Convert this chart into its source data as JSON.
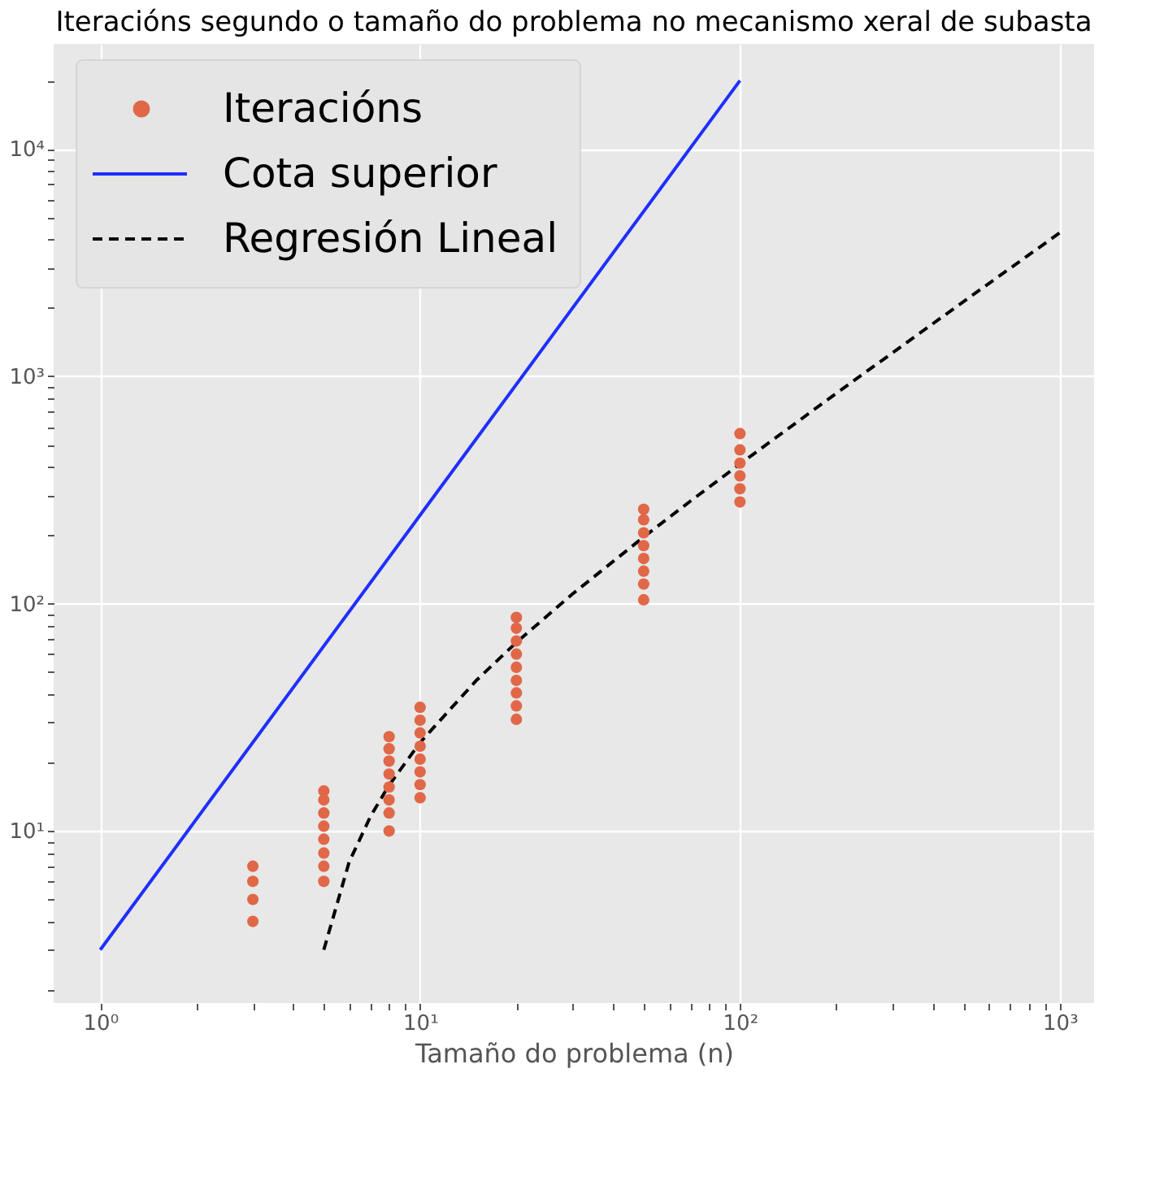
{
  "chart_data": {
    "type": "scatter",
    "title": "Iteracións segundo o tamaño do problema no mecanismo xeral de subasta",
    "xlabel": "Tamaño do problema (n)",
    "log": "xy",
    "grid": true,
    "legend": "top left",
    "xlim": [
      0.715,
      1280
    ],
    "ylim": [
      1.75,
      29000
    ],
    "xticks": [
      {
        "value": 1,
        "label": "10⁰"
      },
      {
        "value": 10,
        "label": "10¹"
      },
      {
        "value": 100,
        "label": "10²"
      },
      {
        "value": 1000,
        "label": "10³"
      },
      {
        "value": 2,
        "label": null
      },
      {
        "value": 3,
        "label": null
      },
      {
        "value": 4,
        "label": null
      },
      {
        "value": 5,
        "label": null
      },
      {
        "value": 6,
        "label": null
      },
      {
        "value": 7,
        "label": null
      },
      {
        "value": 8,
        "label": null
      },
      {
        "value": 9,
        "label": null
      },
      {
        "value": 20,
        "label": null
      },
      {
        "value": 30,
        "label": null
      },
      {
        "value": 40,
        "label": null
      },
      {
        "value": 50,
        "label": null
      },
      {
        "value": 60,
        "label": null
      },
      {
        "value": 70,
        "label": null
      },
      {
        "value": 80,
        "label": null
      },
      {
        "value": 90,
        "label": null
      },
      {
        "value": 200,
        "label": null
      },
      {
        "value": 300,
        "label": null
      },
      {
        "value": 400,
        "label": null
      },
      {
        "value": 500,
        "label": null
      },
      {
        "value": 600,
        "label": null
      },
      {
        "value": 700,
        "label": null
      },
      {
        "value": 800,
        "label": null
      },
      {
        "value": 900,
        "label": null
      }
    ],
    "yticks": [
      {
        "value": 10,
        "label": "10¹"
      },
      {
        "value": 100,
        "label": "10²"
      },
      {
        "value": 1000,
        "label": "10³"
      },
      {
        "value": 10000,
        "label": "10⁴"
      },
      {
        "value": 2,
        "label": null
      },
      {
        "value": 3,
        "label": null
      },
      {
        "value": 4,
        "label": null
      },
      {
        "value": 5,
        "label": null
      },
      {
        "value": 6,
        "label": null
      },
      {
        "value": 7,
        "label": null
      },
      {
        "value": 8,
        "label": null
      },
      {
        "value": 9,
        "label": null
      },
      {
        "value": 20,
        "label": null
      },
      {
        "value": 30,
        "label": null
      },
      {
        "value": 40,
        "label": null
      },
      {
        "value": 50,
        "label": null
      },
      {
        "value": 60,
        "label": null
      },
      {
        "value": 70,
        "label": null
      },
      {
        "value": 80,
        "label": null
      },
      {
        "value": 90,
        "label": null
      },
      {
        "value": 200,
        "label": null
      },
      {
        "value": 300,
        "label": null
      },
      {
        "value": 400,
        "label": null
      },
      {
        "value": 500,
        "label": null
      },
      {
        "value": 600,
        "label": null
      },
      {
        "value": 700,
        "label": null
      },
      {
        "value": 800,
        "label": null
      },
      {
        "value": 900,
        "label": null
      },
      {
        "value": 2000,
        "label": null
      },
      {
        "value": 3000,
        "label": null
      },
      {
        "value": 4000,
        "label": null
      },
      {
        "value": 5000,
        "label": null
      },
      {
        "value": 6000,
        "label": null
      },
      {
        "value": 7000,
        "label": null
      },
      {
        "value": 8000,
        "label": null
      },
      {
        "value": 9000,
        "label": null
      },
      {
        "value": 20000,
        "label": null
      }
    ],
    "series": [
      {
        "name": "Iteracións",
        "marker": "circle",
        "color": "#e06848",
        "x": [
          3,
          3,
          3,
          3,
          5,
          5,
          5,
          5,
          5,
          5,
          5,
          5,
          8,
          8,
          8,
          8,
          8,
          8,
          8,
          8,
          10,
          10,
          10,
          10,
          10,
          10,
          10,
          10,
          20,
          20,
          20,
          20,
          20,
          20,
          20,
          20,
          20,
          50,
          50,
          50,
          50,
          50,
          50,
          50,
          50,
          100,
          100,
          100,
          100,
          100,
          100
        ],
        "values": [
          4,
          5,
          6,
          7,
          6,
          7,
          8,
          9.2,
          10.5,
          12,
          13.7,
          15,
          10,
          12,
          13.7,
          15.6,
          17.8,
          20.3,
          23,
          26,
          14,
          16,
          18.2,
          20.7,
          23.6,
          27,
          30.7,
          35,
          31,
          35.5,
          40.5,
          46,
          52.5,
          60,
          68.5,
          78,
          87,
          104,
          122,
          139,
          158,
          180,
          205,
          234,
          260,
          280,
          320,
          365,
          415,
          475,
          560
        ]
      },
      {
        "name": "Cota superior",
        "type": "line",
        "line_style": "solid",
        "color": "#1f2fff",
        "x": [
          1,
          10,
          100
        ],
        "values": [
          3,
          245,
          20000
        ]
      },
      {
        "name": "Regresión Lineal",
        "type": "line",
        "line_style": "dashed",
        "color": "#000000",
        "x": [
          5,
          6,
          7,
          8,
          10,
          15,
          20,
          30,
          50,
          70,
          100,
          200,
          500,
          1000
        ],
        "values": [
          3,
          7.3,
          11.6,
          15.9,
          24.5,
          46,
          67.5,
          110.5,
          196.5,
          282.5,
          411.5,
          841.5,
          2131.5,
          4281.5
        ]
      }
    ]
  }
}
